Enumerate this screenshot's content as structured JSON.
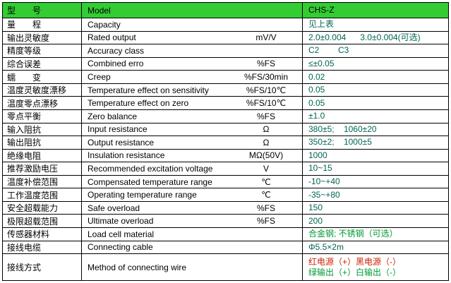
{
  "table": {
    "colors": {
      "header_bg": "#33cc33",
      "border": "#000000",
      "text": "#000000",
      "value_text": "#006655",
      "red": "#cc2200",
      "green": "#009933"
    },
    "header": {
      "cn": "型　　号",
      "en": "Model",
      "value": "CHS-Z"
    },
    "rows": [
      {
        "cn": "量　　程",
        "en": "Capacity",
        "unit": "",
        "value": "见上表"
      },
      {
        "cn": "输出灵敏度",
        "en": "Rated output",
        "unit": "mV/V",
        "value": "2.0±0.004      3.0±0.004(可选)"
      },
      {
        "cn": "精度等级",
        "en": "Accuracy class",
        "unit": "",
        "value": "C2        C3"
      },
      {
        "cn": "综合误差",
        "en": "Combined erro",
        "unit": "%FS",
        "value": "≤±0.05"
      },
      {
        "cn": "蠕　　变",
        "en": "Creep",
        "unit": "%FS/30min",
        "value": "0.02"
      },
      {
        "cn": "温度灵敏度漂移",
        "en": "Temperature effect on sensitivity",
        "unit": "%FS/10℃",
        "value": "0.05"
      },
      {
        "cn": "温度零点漂移",
        "en": "Temperature effect on zero",
        "unit": "%FS/10℃",
        "value": "0.05"
      },
      {
        "cn": "零点平衡",
        "en": "Zero balance",
        "unit": "%FS",
        "value": "±1.0"
      },
      {
        "cn": "输入阻抗",
        "en": "Input resistance",
        "unit": "Ω",
        "value": "380±5;    1060±20"
      },
      {
        "cn": "输出阻抗",
        "en": "Output resistance",
        "unit": "Ω",
        "value": "350±2;    1000±5"
      },
      {
        "cn": "绝缘电阻",
        "en": "Insulation resistance",
        "unit": "MΩ(50V)",
        "value": "1000"
      },
      {
        "cn": "推荐激励电压",
        "en": "Recommended excitation voltage",
        "unit": "V",
        "value": "10~15"
      },
      {
        "cn": "温度补偿范围",
        "en": "Compensated temperature range",
        "unit": "℃",
        "value": "-10~+40"
      },
      {
        "cn": "工作温度范围",
        "en": "Operating temperature range",
        "unit": "℃",
        "value": "-35~+80"
      },
      {
        "cn": "安全超载能力",
        "en": "Safe overload",
        "unit": "%FS",
        "value": "150"
      },
      {
        "cn": "极限超载范围",
        "en": "Ultimate overload",
        "unit": "%FS",
        "value": "200"
      },
      {
        "cn": "传感器材料",
        "en": "Load cell material",
        "unit": "",
        "value": "合金钢; 不锈钢（可选）",
        "value_color": "green"
      },
      {
        "cn": "接线电缆",
        "en": "Connecting cable",
        "unit": "",
        "value": "Φ5.5×2m"
      },
      {
        "cn": "接线方式",
        "en": "Method of connecting wire",
        "unit": "",
        "value_lines": [
          {
            "text": "红电源（+）黑电源（-）",
            "color": "red"
          },
          {
            "text": "绿输出（+）白输出（-）",
            "color": "green"
          }
        ]
      }
    ]
  }
}
